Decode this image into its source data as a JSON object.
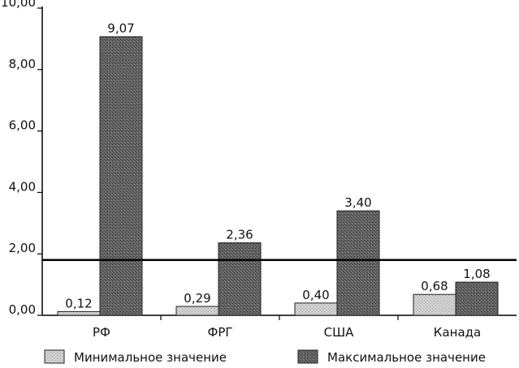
{
  "chart_data": {
    "type": "bar",
    "categories": [
      "РФ",
      "ФРГ",
      "США",
      "Канада"
    ],
    "series": [
      {
        "name": "Минимальное значение",
        "values": [
          0.12,
          0.29,
          0.4,
          0.68
        ],
        "value_labels": [
          "0,12",
          "0,29",
          "0,40",
          "0,68"
        ],
        "color": "#c8c8c8"
      },
      {
        "name": "Максимальное значение",
        "values": [
          9.07,
          2.36,
          3.4,
          1.08
        ],
        "value_labels": [
          "9,07",
          "2,36",
          "3,40",
          "1,08"
        ],
        "color": "#5a5a5a"
      }
    ],
    "ylim": [
      0,
      10
    ],
    "yticks": [
      0,
      2,
      4,
      6,
      8,
      10
    ],
    "ytick_labels": [
      "0,00",
      "2,00",
      "4,00",
      "6,00",
      "8,00",
      "10,00"
    ],
    "reference_line": 1.8,
    "grid": false,
    "legend": "bottom"
  }
}
